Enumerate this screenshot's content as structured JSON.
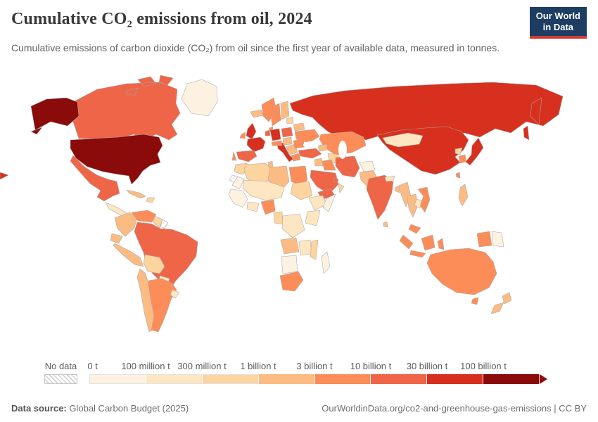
{
  "header": {
    "title": "Cumulative CO₂ emissions from oil, 2024",
    "subtitle": "Cumulative emissions of carbon dioxide (CO₂) from oil since the first year of available data, measured in tonnes.",
    "logo_line1": "Our World",
    "logo_line2": "in Data",
    "logo_bg": "#1d3d63",
    "logo_accent": "#d23a32"
  },
  "legend": {
    "no_data_label": "No data",
    "bins": [
      {
        "label": "0 t",
        "color": "#fdf2e1"
      },
      {
        "label": "100 million t",
        "color": "#fde6c1"
      },
      {
        "label": "300 million t",
        "color": "#fdd49e"
      },
      {
        "label": "1 billion t",
        "color": "#fdbb84"
      },
      {
        "label": "3 billion t",
        "color": "#fc8d59"
      },
      {
        "label": "10 billion t",
        "color": "#ef6548"
      },
      {
        "label": "30 billion t",
        "color": "#d7301f"
      },
      {
        "label": "100 billion t",
        "color": "#8b0a0a"
      }
    ]
  },
  "footer": {
    "source_label": "Data source:",
    "source_value": " Global Carbon Budget (2025)",
    "link": "OurWorldinData.org/co2-and-greenhouse-gas-emissions | CC BY"
  },
  "chart_data": {
    "type": "choropleth",
    "title": "Cumulative CO₂ emissions from oil, 2024",
    "unit": "tonnes",
    "scale_type": "log-binned",
    "legend_position": "bottom",
    "bins": [
      "0 t",
      "100 million t",
      "300 million t",
      "1 billion t",
      "3 billion t",
      "10 billion t",
      "30 billion t",
      "100 billion t"
    ],
    "bin_colors": [
      "#fdf2e1",
      "#fde6c1",
      "#fdd49e",
      "#fdbb84",
      "#fc8d59",
      "#ef6548",
      "#d7301f",
      "#8b0a0a"
    ],
    "no_data_style": "gray diagonal hatch",
    "countries": {
      "United States": "100 billion t+",
      "Canada": "10–30 billion t",
      "Mexico": "10–30 billion t",
      "Greenland": "0–100 million t",
      "Cuba": "1–3 billion t",
      "Brazil": "10–30 billion t",
      "Venezuela": "3–10 billion t",
      "Colombia": "1–3 billion t",
      "Ecuador": "1–3 billion t",
      "Peru": "1–3 billion t",
      "Bolivia": "300 million–1 billion t",
      "Chile": "1–3 billion t",
      "Argentina": "3–10 billion t",
      "United Kingdom": "30–100 billion t",
      "France": "30–100 billion t",
      "Germany": "30–100 billion t",
      "Italy": "30–100 billion t",
      "Spain": "10–30 billion t",
      "Poland": "10–30 billion t",
      "Norway": "3–10 billion t",
      "Sweden": "3–10 billion t",
      "Finland": "1–3 billion t",
      "Ukraine": "3–10 billion t",
      "Russia": "30–100 billion t",
      "Kazakhstan": "3–10 billion t",
      "Turkey": "10–30 billion t",
      "Saudi Arabia": "10–30 billion t",
      "Iran": "10–30 billion t",
      "Iraq": "3–10 billion t",
      "Yemen": "10–30 billion t",
      "Egypt": "3–10 billion t",
      "Algeria": "300 million–1 billion t",
      "Libya": "1–3 billion t",
      "Morocco": "300 million–1 billion t",
      "Sudan": "300 million–1 billion t",
      "Nigeria": "3–10 billion t",
      "Angola": "1–3 billion t",
      "South Africa": "3–10 billion t",
      "Madagascar": "0–100 million t",
      "India": "10–30 billion t",
      "Pakistan": "1–3 billion t",
      "Afghanistan": "0–100 million t",
      "Mongolia": "100–300 million t",
      "China": "30–100 billion t",
      "Japan": "30–100 billion t",
      "South Korea": "3–10 billion t",
      "Thailand": "1–3 billion t",
      "Vietnam": "3–10 billion t",
      "Philippines": "1–3 billion t",
      "Indonesia": "3–10 billion t",
      "Malaysia": "3–10 billion t",
      "Papua New Guinea": "0–100 million t",
      "Australia": "3–10 billion t",
      "New Zealand": "1–3 billion t"
    }
  },
  "map": {
    "fills": {
      "greenland": "#fdf2e1",
      "canada": "#ef6548",
      "usa": "#8b0a0a",
      "mexico": "#ef6548",
      "central-america": "#fde6c1",
      "cuba": "#fdbb84",
      "hispaniola": "#fdd49e",
      "colombia": "#fdbb84",
      "venezuela": "#fc8d59",
      "guyanas": "#fdd49e",
      "french-guiana": "hatch",
      "brazil": "#ef6548",
      "ecuador": "#fdbb84",
      "peru": "#fdbb84",
      "bolivia": "#fdd49e",
      "paraguay": "#fde6c1",
      "chile": "#fdbb84",
      "argentina": "#fc8d59",
      "uruguay": "#fde6c1",
      "iceland": "#fdbb84",
      "uk": "#d7301f",
      "ireland": "#fc8d59",
      "norway": "#fc8d59",
      "sweden": "#fc8d59",
      "finland": "#fdbb84",
      "denmark": "#fc8d59",
      "france": "#d7301f",
      "spain": "#ef6548",
      "portugal": "#fc8d59",
      "germany": "#d7301f",
      "benelux": "#ef6548",
      "italy": "#d7301f",
      "alpine": "#fc8d59",
      "poland": "#ef6548",
      "czech-hungary": "#fdbb84",
      "balkans": "#fdbb84",
      "greece": "#fc8d59",
      "romania": "#fc8d59",
      "ukraine": "#fc8d59",
      "belarus": "#fdbb84",
      "baltics": "#fdd49e",
      "russia": "#d7301f",
      "kazakhstan": "#fc8d59",
      "central-asia": "#fdd49e",
      "caucasus": "#fdbb84",
      "turkey": "#ef6548",
      "levant": "#fdbb84",
      "iraq": "#fc8d59",
      "iran": "#ef6548",
      "afghanistan": "#fdf2e1",
      "pakistan": "#fdbb84",
      "saudi-arabia": "#ef6548",
      "yemen": "#ef6548",
      "oman": "#fdd49e",
      "gulf-states": "#ef6548",
      "morocco": "#fdd49e",
      "mauritania": "#fdf2e1",
      "western-sahara": "hatch",
      "algeria": "#fdd49e",
      "tunisia": "#fdbb84",
      "libya": "#fdbb84",
      "egypt": "#fc8d59",
      "sahel": "#fde6c1",
      "west-africa": "#fdf2e1",
      "nigeria": "#fc8d59",
      "ghana-ivory": "#fde6c1",
      "cameroon-gabon": "#fdd49e",
      "sudan": "#fdd49e",
      "ethiopia": "#fde6c1",
      "somalia": "#fdf2e1",
      "kenya-tanzania": "#fde6c1",
      "drc": "#fde6c1",
      "angola": "#fdbb84",
      "zambia-zimbabwe": "#fde6c1",
      "mozambique": "#fdd49e",
      "namibia-botswana": "#fdf2e1",
      "south-africa": "#fc8d59",
      "madagascar": "#fdf2e1",
      "india": "#ef6548",
      "sri-lanka": "#fdbb84",
      "nepal": "#fde6c1",
      "bangladesh": "#fdbb84",
      "myanmar": "#fdbb84",
      "thailand": "#fdbb84",
      "vietnam": "#fc8d59",
      "laos-cambodia": "#fde6c1",
      "malaysia": "#fc8d59",
      "china": "#d7301f",
      "mongolia": "#fde6c1",
      "north-korea": "#fdd49e",
      "south-korea": "#fc8d59",
      "japan": "#d7301f",
      "taiwan": "#fc8d59",
      "philippines": "#fdbb84",
      "indonesia": "#fc8d59",
      "papua-new-guinea": "#fdf2e1",
      "australia": "#fc8d59",
      "new-zealand": "#fdbb84"
    }
  }
}
